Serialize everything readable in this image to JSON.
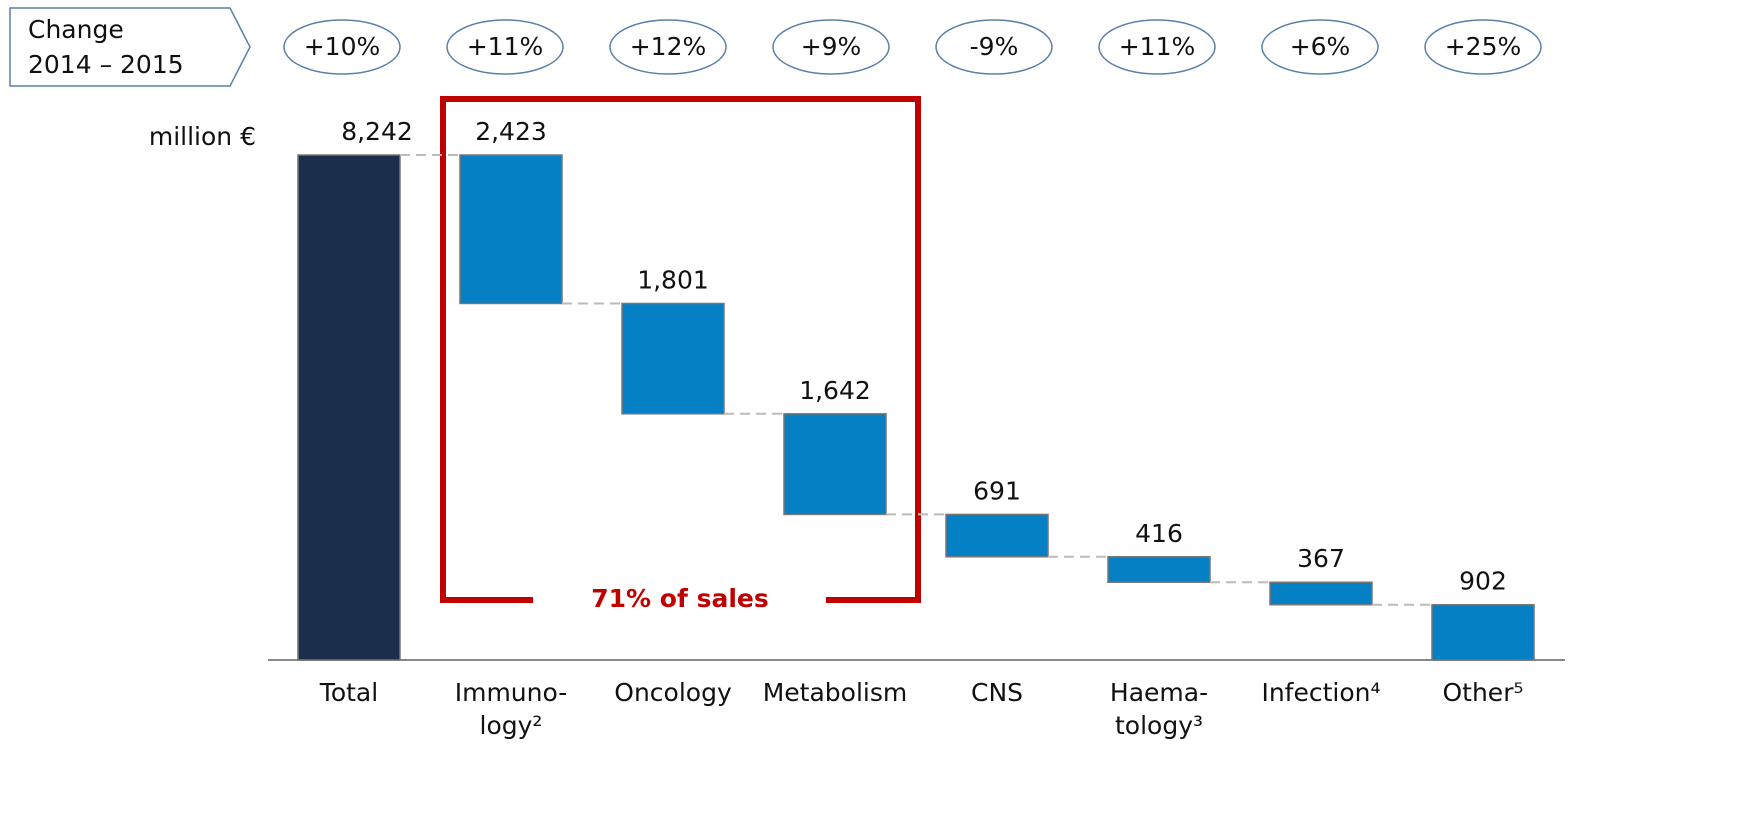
{
  "chart_data": {
    "type": "waterfall",
    "header_lines": [
      "Change",
      "2014 – 2015"
    ],
    "unit_label": "million €",
    "annotation": "71% of sales",
    "categories": [
      "Total",
      "Immuno-\nlogy²",
      "Oncology",
      "Metabolism",
      "CNS",
      "Haema-\ntology³",
      "Infection⁴",
      "Other⁵"
    ],
    "values": [
      8242,
      2423,
      1801,
      1642,
      691,
      416,
      367,
      902
    ],
    "value_labels": [
      "8,242",
      "2,423",
      "1,801",
      "1,642",
      "691",
      "416",
      "367",
      "902"
    ],
    "change_labels": [
      "+10%",
      "+11%",
      "+12%",
      "+9%",
      "-9%",
      "+11%",
      "+6%",
      "+25%"
    ],
    "total_color": "#1b2e4b",
    "color": "#0580c4",
    "annotation_color": "#c00000"
  }
}
